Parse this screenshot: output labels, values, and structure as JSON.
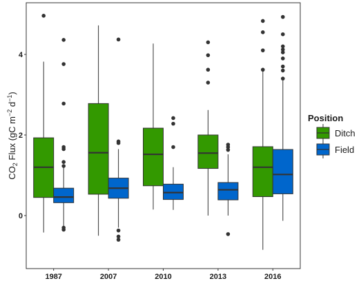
{
  "chart_data": {
    "type": "boxplot",
    "title": "",
    "xlabel": "",
    "ylabel": {
      "quantity": "CO",
      "sub": "2",
      "quantity_rest": " Flux (gC m",
      "exp1": "−2",
      "mid": " d",
      "exp2": "−1",
      "close": ")"
    },
    "ylim": [
      -1.3,
      5.3
    ],
    "y_ticks": [
      0,
      2,
      4
    ],
    "grid": false,
    "legend": {
      "title": "Position",
      "placement": "right",
      "entries": [
        {
          "name": "Ditch",
          "color": "#339900"
        },
        {
          "name": "Field",
          "color": "#0066CC"
        }
      ]
    },
    "categories": [
      "1987",
      "2007",
      "2010",
      "2013",
      "2016"
    ],
    "series": [
      {
        "name": "Ditch",
        "color": "#339900",
        "boxes": [
          {
            "whisker_low": -0.42,
            "q1": 0.45,
            "median": 1.2,
            "q3": 1.93,
            "whisker_high": 3.82,
            "outliers": [
              4.96
            ]
          },
          {
            "whisker_low": -0.5,
            "q1": 0.53,
            "median": 1.56,
            "q3": 2.78,
            "whisker_high": 4.72,
            "outliers": []
          },
          {
            "whisker_low": 0.15,
            "q1": 0.74,
            "median": 1.52,
            "q3": 2.17,
            "whisker_high": 4.27,
            "outliers": []
          },
          {
            "whisker_low": 0.0,
            "q1": 1.17,
            "median": 1.55,
            "q3": 2.0,
            "whisker_high": 2.62,
            "outliers": [
              3.3,
              3.62,
              3.98,
              4.3
            ]
          },
          {
            "whisker_low": -0.85,
            "q1": 0.47,
            "median": 1.2,
            "q3": 1.71,
            "whisker_high": 3.6,
            "outliers": [
              3.62,
              4.1,
              4.55,
              4.83
            ]
          }
        ]
      },
      {
        "name": "Field",
        "color": "#0066CC",
        "boxes": [
          {
            "whisker_low": -0.27,
            "q1": 0.32,
            "median": 0.46,
            "q3": 0.68,
            "whisker_high": 1.2,
            "outliers": [
              -0.35,
              -0.3,
              1.23,
              1.33,
              1.65,
              1.7,
              2.78,
              3.76,
              4.36
            ]
          },
          {
            "whisker_low": -0.3,
            "q1": 0.43,
            "median": 0.68,
            "q3": 0.93,
            "whisker_high": 1.65,
            "outliers": [
              -0.6,
              -0.52,
              -0.37,
              1.8,
              1.84,
              4.37
            ]
          },
          {
            "whisker_low": 0.14,
            "q1": 0.4,
            "median": 0.57,
            "q3": 0.78,
            "whisker_high": 1.2,
            "outliers": [
              1.7,
              2.28,
              2.42
            ]
          },
          {
            "whisker_low": 0.0,
            "q1": 0.39,
            "median": 0.64,
            "q3": 0.82,
            "whisker_high": 1.52,
            "outliers": [
              -0.46,
              1.63,
              1.7,
              1.76
            ]
          },
          {
            "whisker_low": -0.13,
            "q1": 0.54,
            "median": 1.02,
            "q3": 1.64,
            "whisker_high": 3.35,
            "outliers": [
              3.4,
              3.6,
              3.7,
              3.9,
              4.05,
              4.12,
              4.2,
              4.5,
              4.93
            ]
          }
        ]
      }
    ]
  }
}
